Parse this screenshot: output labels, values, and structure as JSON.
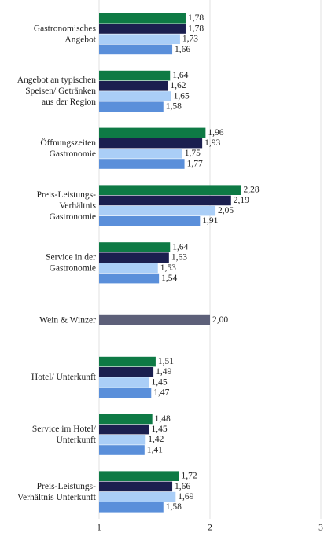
{
  "chart_data": {
    "type": "barh",
    "categories": [
      "Gastronomisches\nAngebot",
      "Angebot an typischen\nSpeisen/ Getränken\naus der Region",
      "Öffnungszeiten\nGastronomie",
      "Preis-Leistungs-\nVerhältnis\nGastronomie",
      "Service in der\nGastronomie",
      "Wein & Winzer",
      "Hotel/ Unterkunft",
      "Service im Hotel/\nUnterkunft",
      "Preis-Leistungs-\nVerhältnis Unterkunft"
    ],
    "series": [
      {
        "color": "#0e7a45",
        "values": [
          1.78,
          1.64,
          1.96,
          2.28,
          1.64,
          null,
          1.51,
          1.48,
          1.72
        ],
        "value_labels": [
          "1,78",
          "1,64",
          "1,96",
          "2,28",
          "1,64",
          null,
          "1,51",
          "1,48",
          "1,72"
        ]
      },
      {
        "color": "#1b1f4f",
        "values": [
          1.78,
          1.62,
          1.93,
          2.19,
          1.63,
          null,
          1.49,
          1.45,
          1.66
        ],
        "value_labels": [
          "1,78",
          "1,62",
          "1,93",
          "2,19",
          "1,63",
          null,
          "1,49",
          "1,45",
          "1,66"
        ]
      },
      {
        "color": "#aacef7",
        "values": [
          1.73,
          1.65,
          1.75,
          2.05,
          1.53,
          null,
          1.45,
          1.42,
          1.69
        ],
        "value_labels": [
          "1,73",
          "1,65",
          "1,75",
          "2,05",
          "1,53",
          null,
          "1,45",
          "1,42",
          "1,69"
        ]
      },
      {
        "color": "#5a8fda",
        "values": [
          1.66,
          1.58,
          1.77,
          1.91,
          1.54,
          null,
          1.47,
          1.41,
          1.58
        ],
        "value_labels": [
          "1,66",
          "1,58",
          "1,77",
          "1,91",
          "1,54",
          null,
          "1,47",
          "1,41",
          "1,58"
        ]
      },
      {
        "color": "#5d6079",
        "values": [
          null,
          null,
          null,
          null,
          null,
          2.0,
          null,
          null,
          null
        ],
        "value_labels": [
          null,
          null,
          null,
          null,
          null,
          "2,00",
          null,
          null,
          null
        ]
      }
    ],
    "xlim": [
      1,
      3
    ],
    "xticks": [
      1,
      2,
      3
    ],
    "grid": true
  }
}
